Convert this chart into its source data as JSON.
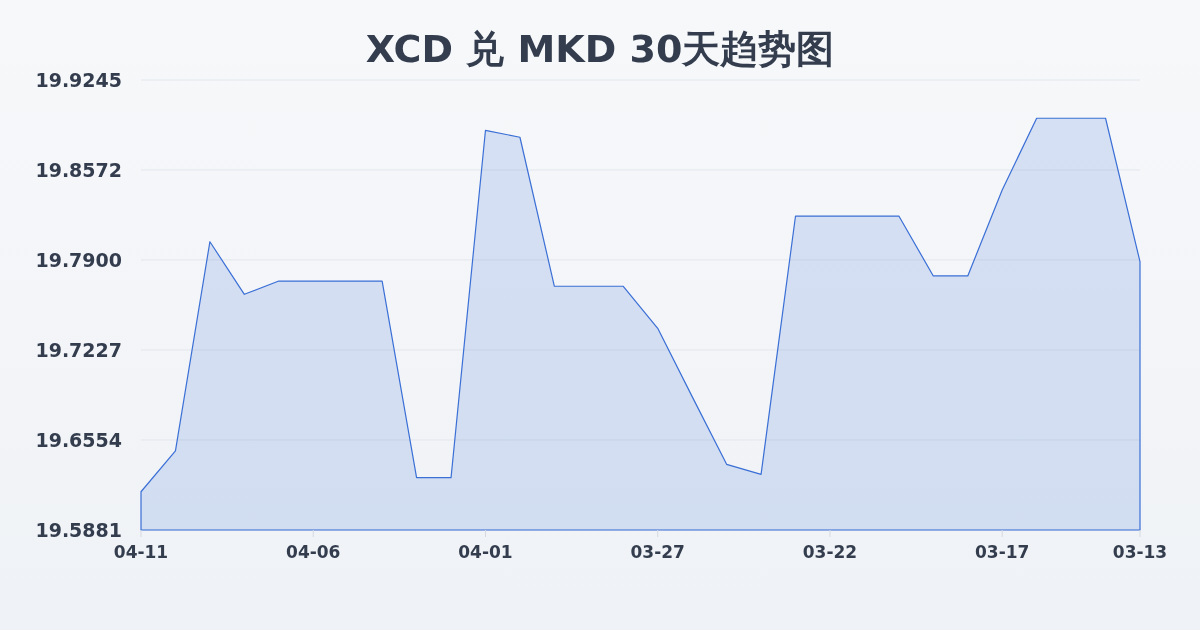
{
  "chart_data": {
    "type": "area",
    "title": "XCD 兑 MKD 30天趋势图",
    "categories": [
      "04-11",
      null,
      null,
      null,
      null,
      "04-06",
      null,
      null,
      null,
      null,
      "04-01",
      null,
      null,
      null,
      null,
      "03-27",
      null,
      null,
      null,
      null,
      "03-22",
      null,
      null,
      null,
      null,
      "03-17",
      null,
      null,
      null,
      "03-13"
    ],
    "series": [
      {
        "color": "#3a6fd6",
        "values": [
          19.6167,
          19.6472,
          19.8036,
          19.7643,
          19.7742,
          19.7742,
          19.7742,
          19.7742,
          19.6272,
          19.6272,
          19.8869,
          19.8817,
          19.7703,
          19.7703,
          19.7703,
          19.7389,
          19.6878,
          19.6372,
          19.6297,
          19.8228,
          19.8228,
          19.8228,
          19.8228,
          19.778,
          19.778,
          19.8423,
          19.8959,
          19.8959,
          19.8959,
          19.7887
        ]
      }
    ],
    "ylim": [
      19.5881,
      19.9245
    ],
    "yticks": [
      19.5881,
      19.6554,
      19.7227,
      {
        "value": 19.79,
        "label": "19.7900"
      },
      19.8572,
      19.9245
    ],
    "grid": "y"
  }
}
